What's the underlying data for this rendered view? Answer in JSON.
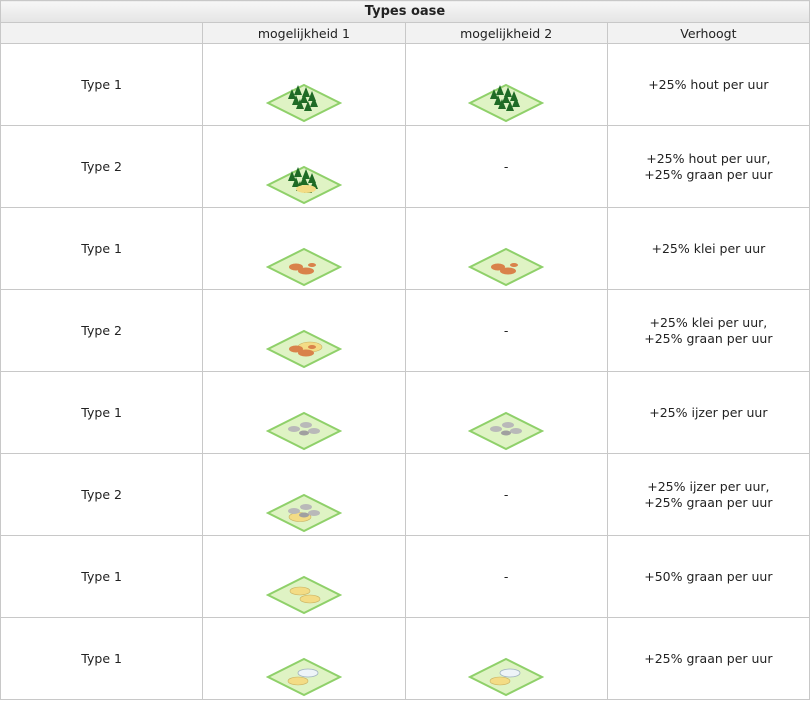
{
  "table": {
    "caption": "Types oase",
    "headers": [
      "",
      "mogelijkheid 1",
      "mogelijkheid 2",
      "Verhoogt"
    ],
    "rows": [
      {
        "type": "Type 1",
        "img1": "forest-oasis-tile",
        "img2": "forest-oasis-tile",
        "bonus": [
          "+25% hout per uur"
        ]
      },
      {
        "type": "Type 2",
        "img1": "forest-wheat-oasis-tile",
        "img2": null,
        "dash": "-",
        "bonus": [
          "+25% hout per uur,",
          "+25% graan per uur"
        ]
      },
      {
        "type": "Type 1",
        "img1": "clay-oasis-tile",
        "img2": "clay-oasis-tile",
        "bonus": [
          "+25% klei per uur"
        ]
      },
      {
        "type": "Type 2",
        "img1": "clay-wheat-oasis-tile",
        "img2": null,
        "dash": "-",
        "bonus": [
          "+25% klei per uur,",
          "+25% graan per uur"
        ]
      },
      {
        "type": "Type 1",
        "img1": "iron-oasis-tile",
        "img2": "iron-oasis-tile",
        "bonus": [
          "+25% ijzer per uur"
        ]
      },
      {
        "type": "Type 2",
        "img1": "iron-wheat-oasis-tile",
        "img2": null,
        "dash": "-",
        "bonus": [
          "+25% ijzer per uur,",
          "+25% graan per uur"
        ]
      },
      {
        "type": "Type 1",
        "img1": "wheat-oasis-tile",
        "img2": null,
        "dash": "-",
        "bonus": [
          "+50% graan per uur"
        ]
      },
      {
        "type": "Type 1",
        "img1": "lake-wheat-oasis-tile",
        "img2": "lake-wheat-oasis-tile",
        "bonus": [
          "+25% graan per uur"
        ]
      }
    ]
  },
  "colors": {
    "tile_green": "#dff3c4",
    "tile_edge": "#8fd06a",
    "forest": "#1f6b25",
    "clay": "#d9824a",
    "iron": "#b9b9b9",
    "wheat": "#f3dc85",
    "water": "#eef4f8"
  }
}
